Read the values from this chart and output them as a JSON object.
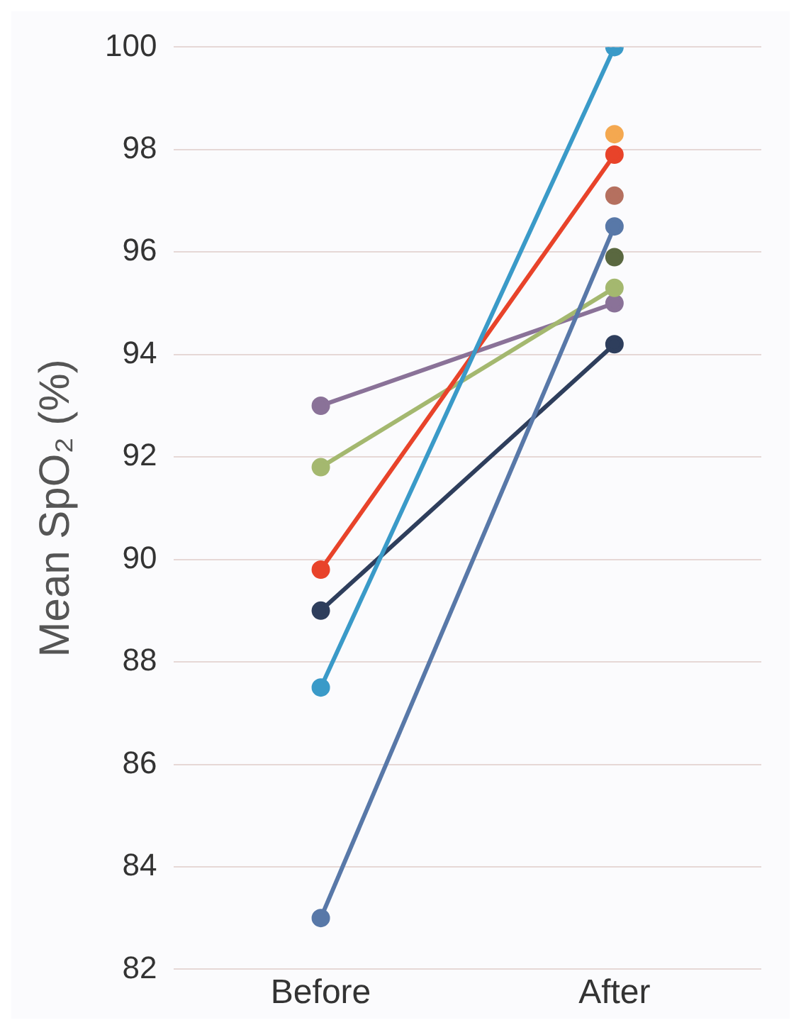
{
  "chart_data": {
    "type": "line",
    "ylabel": "Mean SpO₂ (%)",
    "categories": [
      "Before",
      "After"
    ],
    "ylim": [
      82,
      100
    ],
    "yticks": [
      82,
      84,
      86,
      88,
      90,
      92,
      94,
      96,
      98,
      100
    ],
    "grid": "y",
    "legend": false,
    "marker": "circle",
    "series": [
      {
        "color": "#3a9ac8",
        "values": [
          87.5,
          100
        ]
      },
      {
        "color": "#f4a850",
        "values": [
          null,
          98.3
        ]
      },
      {
        "color": "#e8432a",
        "values": [
          89.8,
          97.9
        ]
      },
      {
        "color": "#b5705f",
        "values": [
          null,
          97.1
        ]
      },
      {
        "color": "#5878a8",
        "values": [
          83,
          96.5
        ]
      },
      {
        "color": "#5a6840",
        "values": [
          null,
          95.9
        ]
      },
      {
        "color": "#a4b86f",
        "values": [
          91.8,
          95.3
        ]
      },
      {
        "color": "#8a7298",
        "values": [
          93,
          95
        ]
      },
      {
        "color": "#2e3e5c",
        "values": [
          89,
          94.2
        ]
      }
    ]
  }
}
